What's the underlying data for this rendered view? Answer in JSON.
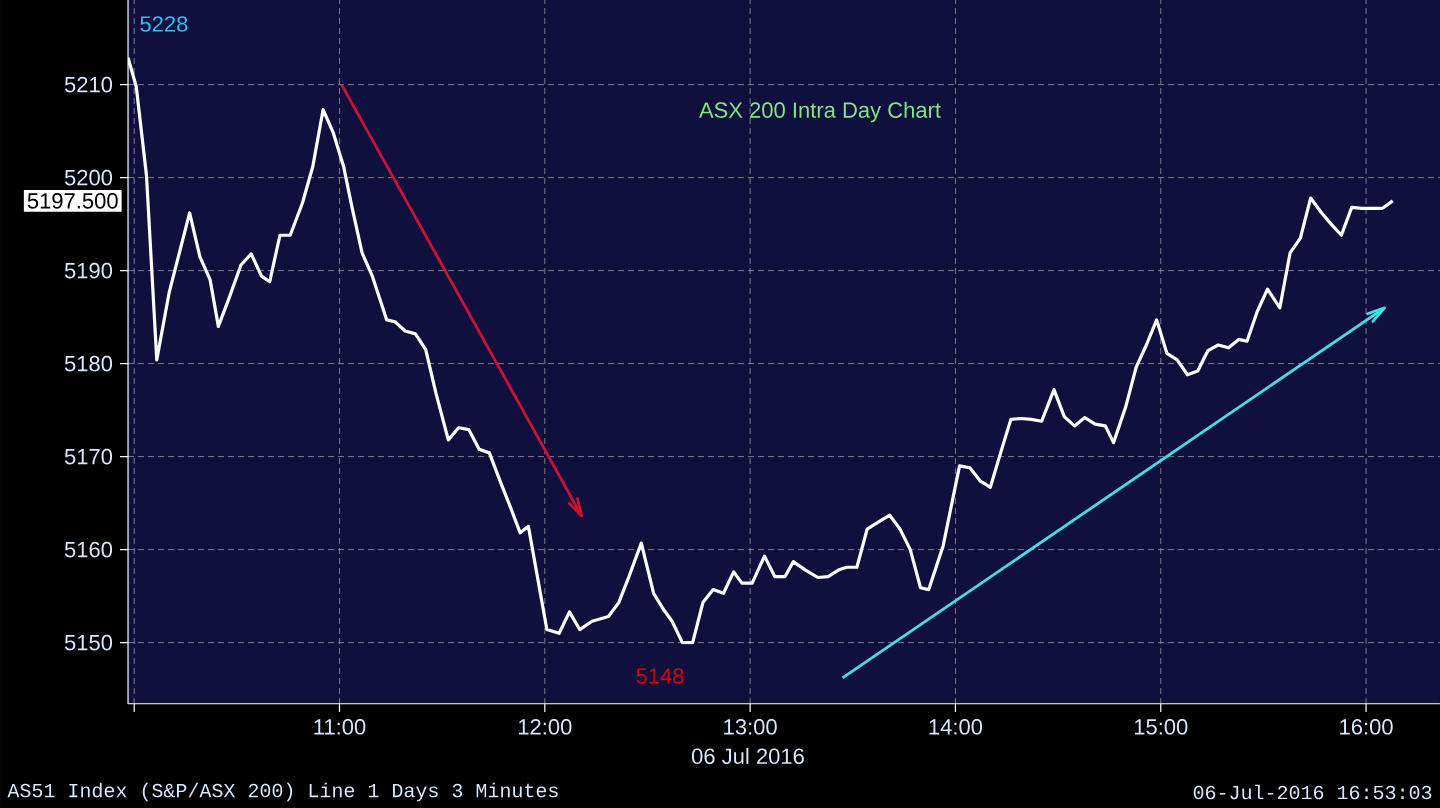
{
  "chart_data": {
    "type": "line",
    "title": "ASX 200 Intra Day Chart",
    "xlabel": "06 Jul 2016",
    "series": [
      {
        "color": "#ffffff",
        "x": [
          9.97,
          10.01,
          10.06,
          10.11,
          10.17,
          10.27,
          10.32,
          10.37,
          10.41,
          10.46,
          10.52,
          10.57,
          10.62,
          10.66,
          10.71,
          10.76,
          10.82,
          10.87,
          10.92,
          10.97,
          11.02,
          11.06,
          11.11,
          11.16,
          11.23,
          11.27,
          11.32,
          11.37,
          11.42,
          11.47,
          11.53,
          11.58,
          11.63,
          11.68,
          11.73,
          11.78,
          11.83,
          11.88,
          11.92,
          12.01,
          12.07,
          12.12,
          12.17,
          12.23,
          12.31,
          12.36,
          12.41,
          12.47,
          12.53,
          12.58,
          12.62,
          12.67,
          12.72,
          12.77,
          12.82,
          12.87,
          12.92,
          12.96,
          13.01,
          13.07,
          13.12,
          13.17,
          13.21,
          13.27,
          13.33,
          13.38,
          13.43,
          13.47,
          13.52,
          13.57,
          13.62,
          13.68,
          13.73,
          13.78,
          13.83,
          13.87,
          13.94,
          14.02,
          14.07,
          14.12,
          14.17,
          14.22,
          14.27,
          14.32,
          14.37,
          14.42,
          14.48,
          14.53,
          14.58,
          14.63,
          14.68,
          14.73,
          14.77,
          14.83,
          14.88,
          14.93,
          14.98,
          15.03,
          15.08,
          15.13,
          15.18,
          15.23,
          15.28,
          15.33,
          15.38,
          15.42,
          15.47,
          15.52,
          15.58,
          15.63,
          15.68,
          15.73,
          15.78,
          15.83,
          15.88,
          15.93,
          15.98,
          16.03,
          16.08,
          16.13
        ],
        "values": [
          5212.9,
          5209.8,
          5200.2,
          5180.4,
          5187.6,
          5196.2,
          5191.5,
          5189.0,
          5184.0,
          5186.9,
          5190.6,
          5191.8,
          5189.4,
          5188.8,
          5193.8,
          5193.8,
          5197.3,
          5201.2,
          5207.3,
          5204.8,
          5201.2,
          5196.9,
          5191.9,
          5189.4,
          5184.7,
          5184.5,
          5183.5,
          5183.2,
          5181.5,
          5176.8,
          5171.8,
          5173.1,
          5172.9,
          5170.8,
          5170.4,
          5167.5,
          5164.7,
          5161.8,
          5162.5,
          5151.4,
          5151.0,
          5153.3,
          5151.4,
          5152.3,
          5152.8,
          5154.3,
          5157.1,
          5160.7,
          5155.3,
          5153.5,
          5152.3,
          5150.0,
          5150.0,
          5154.3,
          5155.7,
          5155.3,
          5157.6,
          5156.4,
          5156.4,
          5159.3,
          5157.1,
          5157.1,
          5158.7,
          5157.8,
          5157.0,
          5157.1,
          5157.8,
          5158.1,
          5158.1,
          5162.2,
          5162.9,
          5163.7,
          5162.2,
          5160.0,
          5155.9,
          5155.7,
          5160.4,
          5169.0,
          5168.8,
          5167.4,
          5166.7,
          5170.4,
          5174.0,
          5174.1,
          5174.0,
          5173.8,
          5177.2,
          5174.3,
          5173.3,
          5174.2,
          5173.5,
          5173.3,
          5171.5,
          5175.4,
          5179.6,
          5182.0,
          5184.7,
          5181.1,
          5180.4,
          5178.8,
          5179.2,
          5181.4,
          5182.0,
          5181.7,
          5182.6,
          5182.4,
          5185.6,
          5188.0,
          5186.0,
          5191.9,
          5193.5,
          5197.8,
          5196.3,
          5195.0,
          5193.8,
          5196.8,
          5196.7,
          5196.7,
          5196.7,
          5197.5
        ]
      },
      {
        "color": "#c81432",
        "x": [
          11.01,
          12.18
        ],
        "values": [
          5210,
          5163.6
        ]
      },
      {
        "color": "#46dce1",
        "x": [
          13.45,
          16.09
        ],
        "values": [
          5146.2,
          5186
        ]
      }
    ],
    "marker": "none",
    "line_style": "solid",
    "grid": true,
    "xlim": [
      9.97,
      16.36
    ],
    "ylim": [
      5143.4,
      5219.1
    ],
    "xticks": [
      {
        "value": 10,
        "label": null
      },
      {
        "value": 11,
        "label": "11:00"
      },
      {
        "value": 12,
        "label": "12:00"
      },
      {
        "value": 13,
        "label": "13:00"
      },
      {
        "value": 14,
        "label": "14:00"
      },
      {
        "value": 15,
        "label": "15:00"
      },
      {
        "value": 16,
        "label": "16:00"
      }
    ],
    "yticks": [
      5150,
      5160,
      5170,
      5180,
      5190,
      5200,
      5210
    ],
    "annotations": [
      "5228",
      "5148",
      "5197.500",
      "AS51 Index (S&P/ASX 200) Line 1 Days 3 Minutes",
      "06-Jul-2016 16:53:03"
    ]
  }
}
